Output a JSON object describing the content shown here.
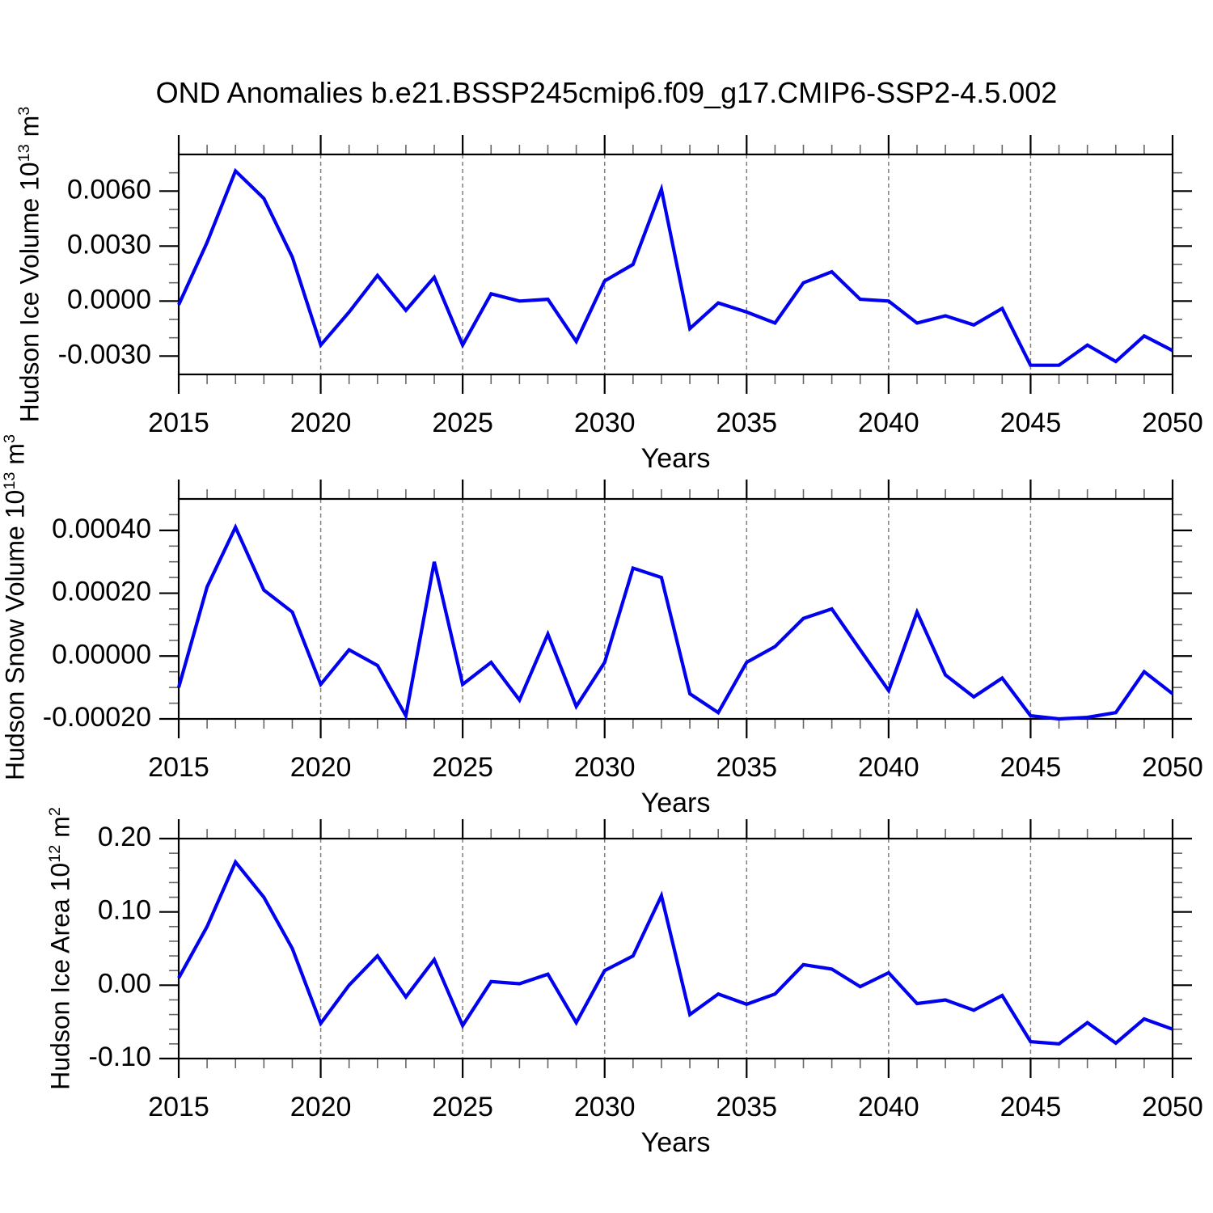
{
  "title": "OND Anomalies b.e21.BSSP245cmip6.f09_g17.CMIP6-SSP2-4.5.002",
  "colors": {
    "line": "#0101f0",
    "grid": "#808080",
    "axis": "#000000",
    "minor_tick": "#666666",
    "text": "#000000"
  },
  "chart_data": [
    {
      "type": "line",
      "ylabel_parts": [
        {
          "t": "Hudson Ice Volume 10"
        },
        {
          "t": "13",
          "sup": true
        },
        {
          "t": " m"
        },
        {
          "t": "3",
          "sup": true
        }
      ],
      "xlabel": "Years",
      "x": [
        2015,
        2016,
        2017,
        2018,
        2019,
        2020,
        2021,
        2022,
        2023,
        2024,
        2025,
        2026,
        2027,
        2028,
        2029,
        2030,
        2031,
        2032,
        2033,
        2034,
        2035,
        2036,
        2037,
        2038,
        2039,
        2040,
        2041,
        2042,
        2043,
        2044,
        2045,
        2046,
        2047,
        2048,
        2049,
        2050
      ],
      "values": [
        -0.0002,
        0.0032,
        0.0071,
        0.0056,
        0.0024,
        -0.0024,
        -0.0006,
        0.0014,
        -0.0005,
        0.0013,
        -0.0024,
        0.0004,
        0.0,
        0.0001,
        -0.0022,
        0.0011,
        0.002,
        0.0061,
        -0.0015,
        -0.0001,
        -0.0006,
        -0.0012,
        0.001,
        0.0016,
        0.0001,
        0.0,
        -0.0012,
        -0.0008,
        -0.0013,
        -0.0004,
        -0.0035,
        -0.0035,
        -0.0024,
        -0.0033,
        -0.0019,
        -0.0027
      ],
      "ylim": [
        -0.004,
        0.008
      ],
      "yticks": [
        {
          "v": -0.003,
          "t": "-0.0030"
        },
        {
          "v": 0.0,
          "t": "0.0000"
        },
        {
          "v": 0.003,
          "t": "0.0030"
        },
        {
          "v": 0.006,
          "t": "0.0060"
        }
      ],
      "yminor_step": 0.001,
      "xlim": [
        2015,
        2050
      ],
      "xticks": [
        2015,
        2020,
        2025,
        2030,
        2035,
        2040,
        2045,
        2050
      ],
      "grid_x": [
        2020,
        2025,
        2030,
        2035,
        2040,
        2045
      ],
      "grid": "vertical-dashed",
      "legend": "none"
    },
    {
      "type": "line",
      "ylabel_parts": [
        {
          "t": "Hudson Snow Volume 10"
        },
        {
          "t": "13",
          "sup": true
        },
        {
          "t": " m"
        },
        {
          "t": "3",
          "sup": true
        }
      ],
      "xlabel": "Years",
      "x": [
        2015,
        2016,
        2017,
        2018,
        2019,
        2020,
        2021,
        2022,
        2023,
        2024,
        2025,
        2026,
        2027,
        2028,
        2029,
        2030,
        2031,
        2032,
        2033,
        2034,
        2035,
        2036,
        2037,
        2038,
        2039,
        2040,
        2041,
        2042,
        2043,
        2044,
        2045,
        2046,
        2047,
        2048,
        2049,
        2050
      ],
      "values": [
        -0.0001,
        0.00022,
        0.00041,
        0.00021,
        0.00014,
        -9e-05,
        2e-05,
        -3e-05,
        -0.00019,
        0.0003,
        -9e-05,
        -2e-05,
        -0.00014,
        7e-05,
        -0.00016,
        -2e-05,
        0.00028,
        0.00025,
        -0.00012,
        -0.00018,
        -2e-05,
        3e-05,
        0.00012,
        0.00015,
        2e-05,
        -0.00011,
        0.00014,
        -6e-05,
        -0.00013,
        -7e-05,
        -0.00019,
        -0.0002,
        -0.000195,
        -0.00018,
        -5e-05,
        -0.00012
      ],
      "ylim": [
        -0.0002,
        0.0005
      ],
      "yticks": [
        {
          "v": -0.0002,
          "t": "-0.00020"
        },
        {
          "v": 0.0,
          "t": "0.00000"
        },
        {
          "v": 0.0002,
          "t": "0.00020"
        },
        {
          "v": 0.0004,
          "t": "0.00040"
        }
      ],
      "yminor_step": 5e-05,
      "xlim": [
        2015,
        2050
      ],
      "xticks": [
        2015,
        2020,
        2025,
        2030,
        2035,
        2040,
        2045,
        2050
      ],
      "grid_x": [
        2020,
        2025,
        2030,
        2035,
        2040,
        2045
      ],
      "grid": "vertical-dashed",
      "legend": "none"
    },
    {
      "type": "line",
      "ylabel_parts": [
        {
          "t": "Hudson Ice Area 10"
        },
        {
          "t": "12",
          "sup": true
        },
        {
          "t": " m"
        },
        {
          "t": "2",
          "sup": true
        }
      ],
      "xlabel": "Years",
      "x": [
        2015,
        2016,
        2017,
        2018,
        2019,
        2020,
        2021,
        2022,
        2023,
        2024,
        2025,
        2026,
        2027,
        2028,
        2029,
        2030,
        2031,
        2032,
        2033,
        2034,
        2035,
        2036,
        2037,
        2038,
        2039,
        2040,
        2041,
        2042,
        2043,
        2044,
        2045,
        2046,
        2047,
        2048,
        2049,
        2050
      ],
      "values": [
        0.01,
        0.08,
        0.168,
        0.12,
        0.05,
        -0.052,
        0.0,
        0.04,
        -0.016,
        0.035,
        -0.055,
        0.005,
        0.002,
        0.015,
        -0.051,
        0.02,
        0.04,
        0.122,
        -0.04,
        -0.012,
        -0.026,
        -0.012,
        0.028,
        0.022,
        -0.002,
        0.017,
        -0.025,
        -0.02,
        -0.034,
        -0.014,
        -0.077,
        -0.08,
        -0.051,
        -0.079,
        -0.046,
        -0.06
      ],
      "ylim": [
        -0.1,
        0.2
      ],
      "yticks": [
        {
          "v": -0.1,
          "t": "-0.10"
        },
        {
          "v": 0.0,
          "t": "0.00"
        },
        {
          "v": 0.1,
          "t": "0.10"
        },
        {
          "v": 0.2,
          "t": "0.20"
        }
      ],
      "yminor_step": 0.02,
      "xlim": [
        2015,
        2050
      ],
      "xticks": [
        2015,
        2020,
        2025,
        2030,
        2035,
        2040,
        2045,
        2050
      ],
      "grid_x": [
        2020,
        2025,
        2030,
        2035,
        2040,
        2045
      ],
      "grid": "vertical-dashed",
      "legend": "none"
    }
  ]
}
